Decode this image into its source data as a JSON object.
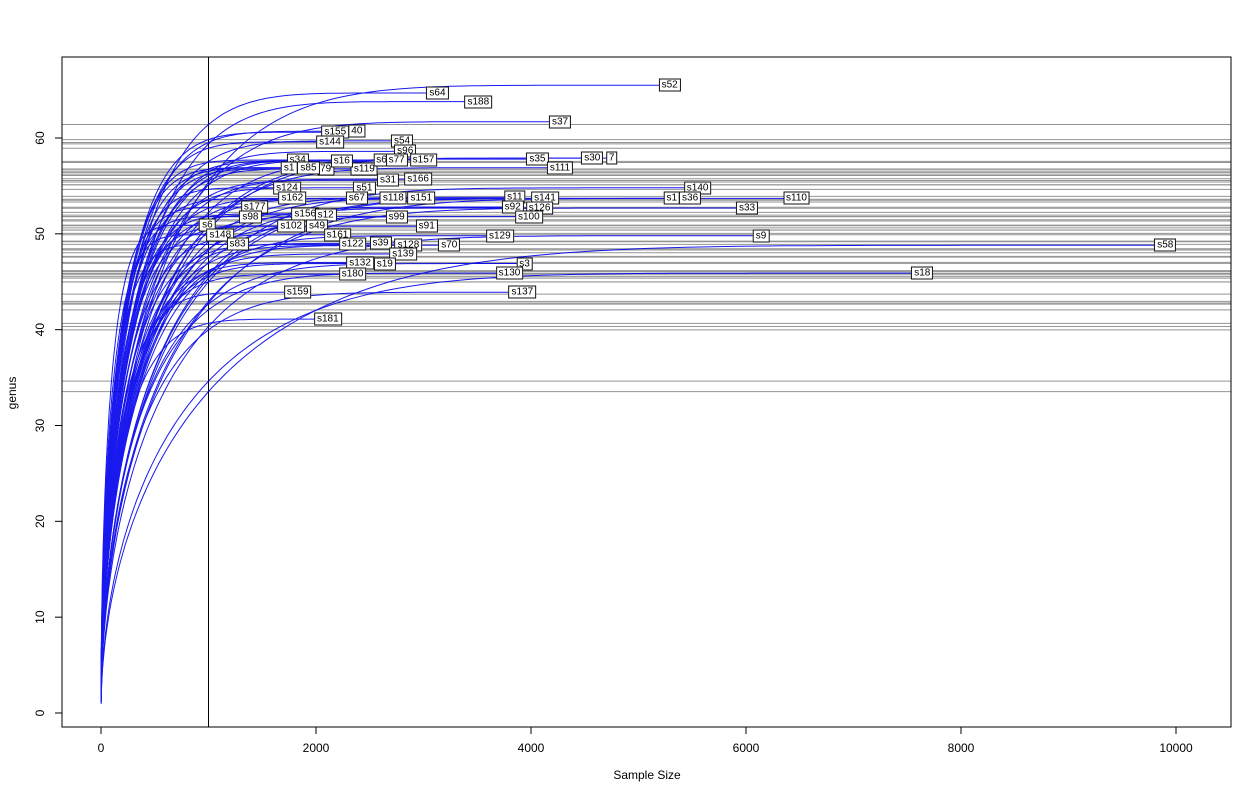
{
  "chart_data": {
    "type": "line",
    "title": "",
    "xlabel": "Sample Size",
    "ylabel": "genus",
    "x_ticks": [
      0,
      2000,
      4000,
      6000,
      8000,
      10000
    ],
    "y_ticks": [
      0,
      10,
      20,
      30,
      40,
      50,
      60
    ],
    "xlim": [
      0,
      10500
    ],
    "ylim": [
      0,
      68
    ],
    "grid": "off",
    "legend": "none",
    "curve_color": "#0000ee",
    "reference_line_color": "#3c3c3c",
    "vline_x": 1000,
    "vline_note": "vertical cutoff line at sample size 1000",
    "hline_note": "one horizontal rarefied-richness reference line per sample, spanning full plot width",
    "series": [
      {
        "id": "s52",
        "label": "s52",
        "sample_size": 5290,
        "genus": 65.5
      },
      {
        "id": "s64",
        "label": "s64",
        "sample_size": 3130,
        "genus": 64.7
      },
      {
        "id": "s188",
        "label": "s188",
        "sample_size": 3510,
        "genus": 63.8
      },
      {
        "id": "s37",
        "label": "s37",
        "sample_size": 4270,
        "genus": 61.7
      },
      {
        "id": "s40-partial",
        "label": "40",
        "sample_size": 2380,
        "genus": 60.7
      },
      {
        "id": "s155",
        "label": "s155",
        "sample_size": 2180,
        "genus": 60.6
      },
      {
        "id": "s144",
        "label": "s144",
        "sample_size": 2130,
        "genus": 59.6
      },
      {
        "id": "s54",
        "label": "s54",
        "sample_size": 2800,
        "genus": 59.7
      },
      {
        "id": "s96",
        "label": "s96",
        "sample_size": 2830,
        "genus": 58.6
      },
      {
        "id": "s34",
        "label": "s34",
        "sample_size": 1830,
        "genus": 57.7
      },
      {
        "id": "s1-a",
        "label": "s1",
        "sample_size": 1750,
        "genus": 56.9
      },
      {
        "id": "s79-partial",
        "label": "79",
        "sample_size": 2090,
        "genus": 56.8
      },
      {
        "id": "s85",
        "label": "s85",
        "sample_size": 1930,
        "genus": 56.9
      },
      {
        "id": "s119",
        "label": "s119",
        "sample_size": 2450,
        "genus": 56.8
      },
      {
        "id": "s16",
        "label": "s16",
        "sample_size": 2240,
        "genus": 57.6
      },
      {
        "id": "s6-b",
        "label": "s6",
        "sample_size": 2610,
        "genus": 57.7
      },
      {
        "id": "s77",
        "label": "s77",
        "sample_size": 2750,
        "genus": 57.7
      },
      {
        "id": "s157",
        "label": "s157",
        "sample_size": 3000,
        "genus": 57.7
      },
      {
        "id": "s35",
        "label": "s35",
        "sample_size": 4060,
        "genus": 57.8
      },
      {
        "id": "s7-partial",
        "label": "7",
        "sample_size": 4750,
        "genus": 57.9
      },
      {
        "id": "s30",
        "label": "s30",
        "sample_size": 4570,
        "genus": 57.9
      },
      {
        "id": "s111",
        "label": "s111",
        "sample_size": 4270,
        "genus": 56.9
      },
      {
        "id": "s31",
        "label": "s31",
        "sample_size": 2670,
        "genus": 55.6
      },
      {
        "id": "s166",
        "label": "s166",
        "sample_size": 2950,
        "genus": 55.7
      },
      {
        "id": "s51",
        "label": "s51",
        "sample_size": 2450,
        "genus": 54.8
      },
      {
        "id": "s140",
        "label": "s140",
        "sample_size": 5550,
        "genus": 54.8
      },
      {
        "id": "s124",
        "label": "s124",
        "sample_size": 1730,
        "genus": 54.8
      },
      {
        "id": "s162",
        "label": "s162",
        "sample_size": 1780,
        "genus": 53.7
      },
      {
        "id": "s67",
        "label": "s67",
        "sample_size": 2380,
        "genus": 53.7
      },
      {
        "id": "s118",
        "label": "s118",
        "sample_size": 2720,
        "genus": 53.7
      },
      {
        "id": "s151",
        "label": "s151",
        "sample_size": 2980,
        "genus": 53.7
      },
      {
        "id": "s11",
        "label": "s11",
        "sample_size": 3850,
        "genus": 53.8
      },
      {
        "id": "s141",
        "label": "s141",
        "sample_size": 4130,
        "genus": 53.7
      },
      {
        "id": "s1-b",
        "label": "s1",
        "sample_size": 5310,
        "genus": 53.7
      },
      {
        "id": "s36",
        "label": "s36",
        "sample_size": 5480,
        "genus": 53.7
      },
      {
        "id": "s177",
        "label": "s177",
        "sample_size": 1430,
        "genus": 52.8
      },
      {
        "id": "s92",
        "label": "s92",
        "sample_size": 3830,
        "genus": 52.8
      },
      {
        "id": "s126",
        "label": "s126",
        "sample_size": 4080,
        "genus": 52.7
      },
      {
        "id": "s100",
        "label": "s100",
        "sample_size": 3980,
        "genus": 51.8
      },
      {
        "id": "s33",
        "label": "s33",
        "sample_size": 6010,
        "genus": 52.7
      },
      {
        "id": "s110",
        "label": "s110",
        "sample_size": 6470,
        "genus": 53.7
      },
      {
        "id": "s98",
        "label": "s98",
        "sample_size": 1390,
        "genus": 51.8
      },
      {
        "id": "s156",
        "label": "s156",
        "sample_size": 1900,
        "genus": 52.1
      },
      {
        "id": "s12",
        "label": "s12",
        "sample_size": 2090,
        "genus": 52.0
      },
      {
        "id": "s99",
        "label": "s99",
        "sample_size": 2750,
        "genus": 51.8
      },
      {
        "id": "s6",
        "label": "s6",
        "sample_size": 990,
        "genus": 50.9
      },
      {
        "id": "s102",
        "label": "s102",
        "sample_size": 1770,
        "genus": 50.8
      },
      {
        "id": "s49",
        "label": "s49",
        "sample_size": 2010,
        "genus": 50.8
      },
      {
        "id": "s91",
        "label": "s91",
        "sample_size": 3030,
        "genus": 50.8
      },
      {
        "id": "s148",
        "label": "s148",
        "sample_size": 1110,
        "genus": 49.9
      },
      {
        "id": "s161",
        "label": "s161",
        "sample_size": 2200,
        "genus": 49.9
      },
      {
        "id": "s83",
        "label": "s83",
        "sample_size": 1270,
        "genus": 48.9
      },
      {
        "id": "s122",
        "label": "s122",
        "sample_size": 2340,
        "genus": 48.9
      },
      {
        "id": "s39",
        "label": "s39",
        "sample_size": 2600,
        "genus": 49.0
      },
      {
        "id": "s128",
        "label": "s128",
        "sample_size": 2860,
        "genus": 48.8
      },
      {
        "id": "s70",
        "label": "s70",
        "sample_size": 3240,
        "genus": 48.8
      },
      {
        "id": "s129",
        "label": "s129",
        "sample_size": 3710,
        "genus": 49.8
      },
      {
        "id": "s9",
        "label": "s9",
        "sample_size": 6140,
        "genus": 49.8
      },
      {
        "id": "s58",
        "label": "s58",
        "sample_size": 9900,
        "genus": 48.8
      },
      {
        "id": "s139",
        "label": "s139",
        "sample_size": 2810,
        "genus": 47.9
      },
      {
        "id": "s132",
        "label": "s132",
        "sample_size": 2410,
        "genus": 47.0
      },
      {
        "id": "s19",
        "label": "s19",
        "sample_size": 2640,
        "genus": 46.9
      },
      {
        "id": "s3",
        "label": "s3",
        "sample_size": 3940,
        "genus": 46.9
      },
      {
        "id": "s180",
        "label": "s180",
        "sample_size": 2340,
        "genus": 45.8
      },
      {
        "id": "s130",
        "label": "s130",
        "sample_size": 3800,
        "genus": 45.9
      },
      {
        "id": "s18",
        "label": "s18",
        "sample_size": 7640,
        "genus": 45.9
      },
      {
        "id": "s159",
        "label": "s159",
        "sample_size": 1830,
        "genus": 43.9
      },
      {
        "id": "s137",
        "label": "s137",
        "sample_size": 3920,
        "genus": 43.9
      },
      {
        "id": "s181",
        "label": "s181",
        "sample_size": 2110,
        "genus": 41.1
      }
    ]
  }
}
